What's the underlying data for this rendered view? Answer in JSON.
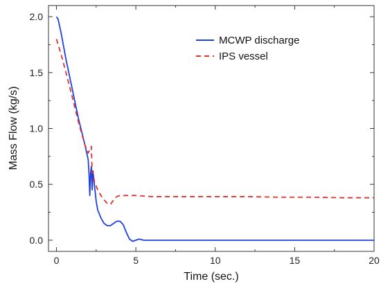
{
  "chart_data": {
    "type": "line",
    "xlabel": "Time (sec.)",
    "ylabel": "Mass Flow (kg/s)",
    "xlim": [
      -0.5,
      20
    ],
    "ylim": [
      -0.1,
      2.1
    ],
    "x_ticks": [
      0,
      5,
      10,
      15,
      20
    ],
    "x_tick_labels": [
      "0",
      "5",
      "10",
      "15",
      "20"
    ],
    "y_ticks": [
      0.0,
      0.5,
      1.0,
      1.5,
      2.0
    ],
    "y_tick_labels": [
      "0.0",
      "0.5",
      "1.0",
      "1.5",
      "2.0"
    ],
    "grid": false,
    "legend_position": "top-right",
    "series": [
      {
        "name": "MCWP discharge",
        "color": "#1f3fe0",
        "style": "solid",
        "x": [
          0.0,
          0.1,
          0.3,
          0.6,
          1.0,
          1.4,
          1.8,
          2.0,
          2.05,
          2.1,
          2.15,
          2.2,
          2.25,
          2.3,
          2.35,
          2.4,
          2.45,
          2.5,
          2.6,
          2.8,
          3.0,
          3.2,
          3.4,
          3.6,
          3.8,
          4.0,
          4.2,
          4.4,
          4.6,
          4.8,
          5.0,
          5.2,
          5.5,
          6.0,
          8.0,
          10.0,
          12.0,
          14.0,
          16.0,
          18.0,
          20.0
        ],
        "y": [
          2.0,
          1.98,
          1.85,
          1.62,
          1.35,
          1.08,
          0.85,
          0.72,
          0.6,
          0.4,
          0.6,
          0.66,
          0.45,
          0.62,
          0.55,
          0.48,
          0.42,
          0.35,
          0.27,
          0.2,
          0.15,
          0.13,
          0.13,
          0.15,
          0.17,
          0.17,
          0.14,
          0.07,
          0.01,
          -0.01,
          0.0,
          0.01,
          0.0,
          0.0,
          0.0,
          0.0,
          0.0,
          0.0,
          0.0,
          0.0,
          0.0
        ]
      },
      {
        "name": "IPS vessel",
        "color": "#e0302a",
        "style": "dashed",
        "x": [
          0.0,
          0.3,
          0.6,
          1.0,
          1.4,
          1.8,
          2.0,
          2.2,
          2.25,
          2.3,
          2.4,
          2.6,
          2.8,
          3.0,
          3.2,
          3.4,
          3.6,
          3.8,
          4.0,
          4.5,
          5.0,
          6.0,
          8.0,
          10.0,
          12.0,
          14.0,
          16.0,
          18.0,
          20.0
        ],
        "y": [
          1.8,
          1.66,
          1.5,
          1.28,
          1.05,
          0.85,
          0.78,
          0.84,
          0.6,
          0.6,
          0.52,
          0.45,
          0.4,
          0.36,
          0.33,
          0.32,
          0.36,
          0.39,
          0.4,
          0.4,
          0.4,
          0.39,
          0.39,
          0.39,
          0.39,
          0.385,
          0.385,
          0.38,
          0.38
        ]
      }
    ]
  }
}
